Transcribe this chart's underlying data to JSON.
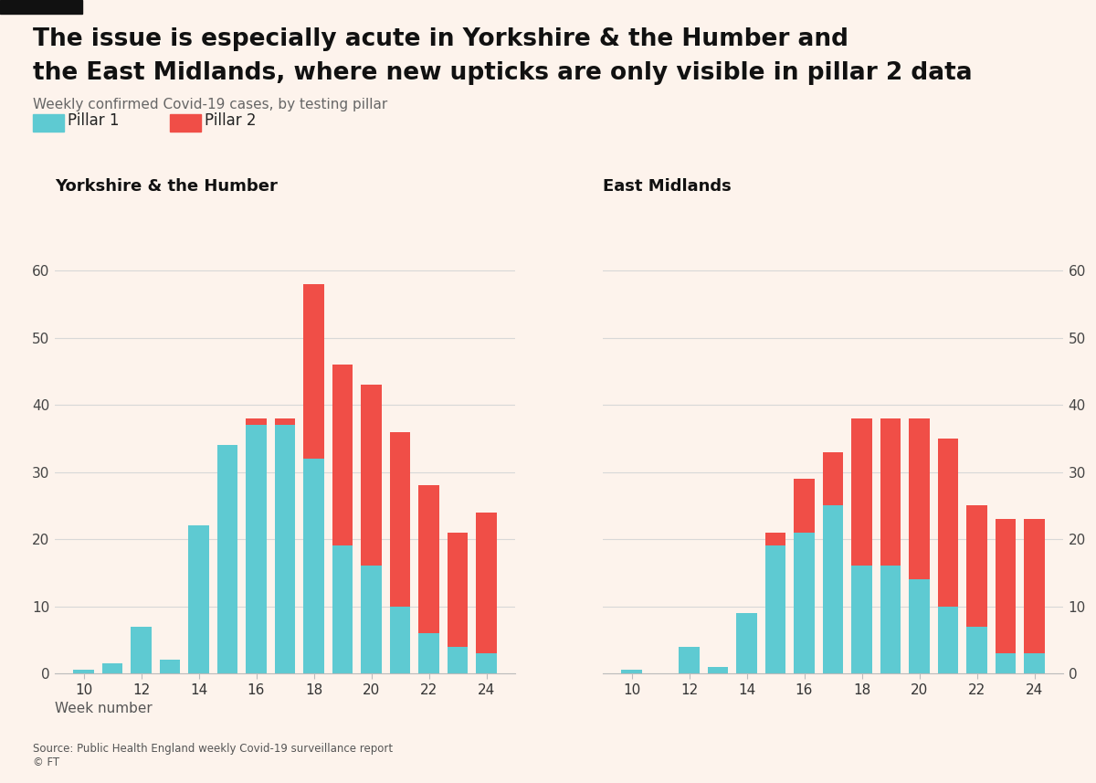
{
  "title_line1": "The issue is especially acute in Yorkshire & the Humber and",
  "title_line2": "the East Midlands, where new upticks are only visible in pillar 2 data",
  "subtitle": "Weekly confirmed Covid-19 cases, by testing pillar",
  "source": "Source: Public Health England weekly Covid-19 surveillance report",
  "copyright": "© FT",
  "xlabel": "Week number",
  "legend_p1": "Pillar 1",
  "legend_p2": "Pillar 2",
  "color_p1": "#5ecad2",
  "color_p2": "#f04e47",
  "background_color": "#fdf3ec",
  "weeks": [
    10,
    11,
    12,
    13,
    14,
    15,
    16,
    17,
    18,
    19,
    20,
    21,
    22,
    23,
    24
  ],
  "yorkshire": {
    "title": "Yorkshire & the Humber",
    "pillar1": [
      0.5,
      1.5,
      7,
      2,
      22,
      34,
      37,
      37,
      32,
      19,
      16,
      10,
      6,
      4,
      3
    ],
    "pillar2": [
      0,
      0,
      0,
      0,
      0,
      0,
      1,
      1,
      26,
      27,
      27,
      26,
      22,
      17,
      21
    ]
  },
  "east_midlands": {
    "title": "East Midlands",
    "pillar1": [
      0.5,
      0,
      4,
      1,
      9,
      19,
      21,
      25,
      16,
      16,
      14,
      10,
      7,
      3,
      3
    ],
    "pillar2": [
      0,
      0,
      0,
      0,
      0,
      2,
      8,
      8,
      22,
      22,
      24,
      25,
      18,
      20,
      20
    ]
  },
  "ylim": [
    0,
    70
  ],
  "yticks": [
    0,
    10,
    20,
    30,
    40,
    50,
    60
  ],
  "xticks": [
    10,
    12,
    14,
    16,
    18,
    20,
    22,
    24
  ]
}
